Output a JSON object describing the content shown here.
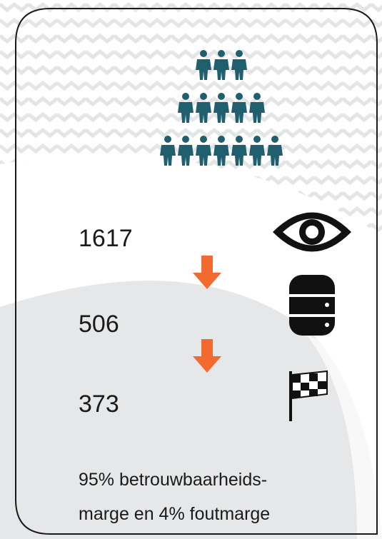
{
  "stats": [
    1617,
    506,
    373
  ],
  "footnote": [
    "95% betrouwbaarheids-",
    "marge en 4% foutmarge"
  ]
}
